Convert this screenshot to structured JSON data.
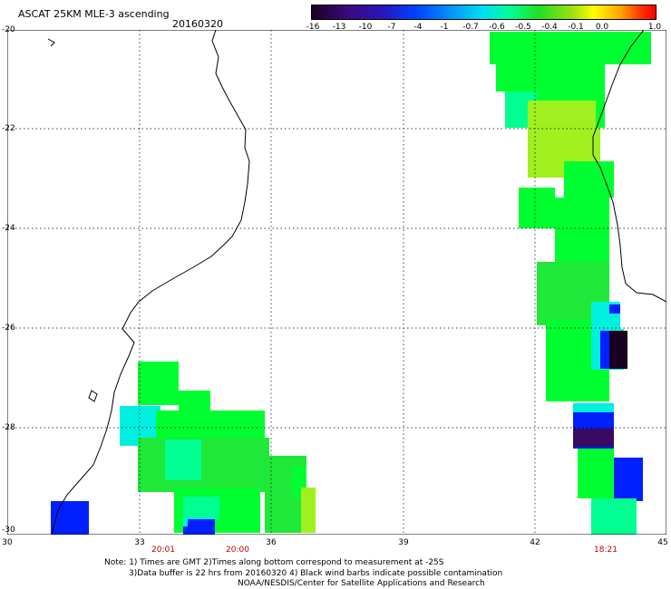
{
  "header": {
    "title": "ASCAT 25KM MLE-3 ascending",
    "date": "20160320"
  },
  "colorbar": {
    "labels": [
      "-16",
      "-13",
      "-10",
      "-7",
      "-4",
      "-1",
      "-0.7",
      "-0.6",
      "-0.5",
      "-0.4",
      "-0.1",
      "0.0",
      "1.0"
    ]
  },
  "axes": {
    "y_labels": [
      "-20",
      "-22",
      "-24",
      "-26",
      "-28",
      "-30"
    ],
    "x_labels": [
      "30",
      "33",
      "36",
      "39",
      "42",
      "45"
    ]
  },
  "times": [
    "20:01",
    "20:00",
    "18:21"
  ],
  "notes": {
    "line1": "Note: 1) Times are GMT 2)Times along bottom correspond to measurement at -25S",
    "line2": "3)Data buffer is 22 hrs from 20160320 4) Black wind barbs indicate possible contamination",
    "line3": "NOAA/NESDIS/Center for Satellite Applications and Research"
  },
  "colors": {
    "green": "#00ff30",
    "green_mid": "#20e838",
    "lime": "#a0f020",
    "cyan": "#00f0e0",
    "cyan_green": "#00ff90",
    "blue": "#0020ff",
    "dark_purple": "#1a0020",
    "purple": "#3a0a60"
  }
}
